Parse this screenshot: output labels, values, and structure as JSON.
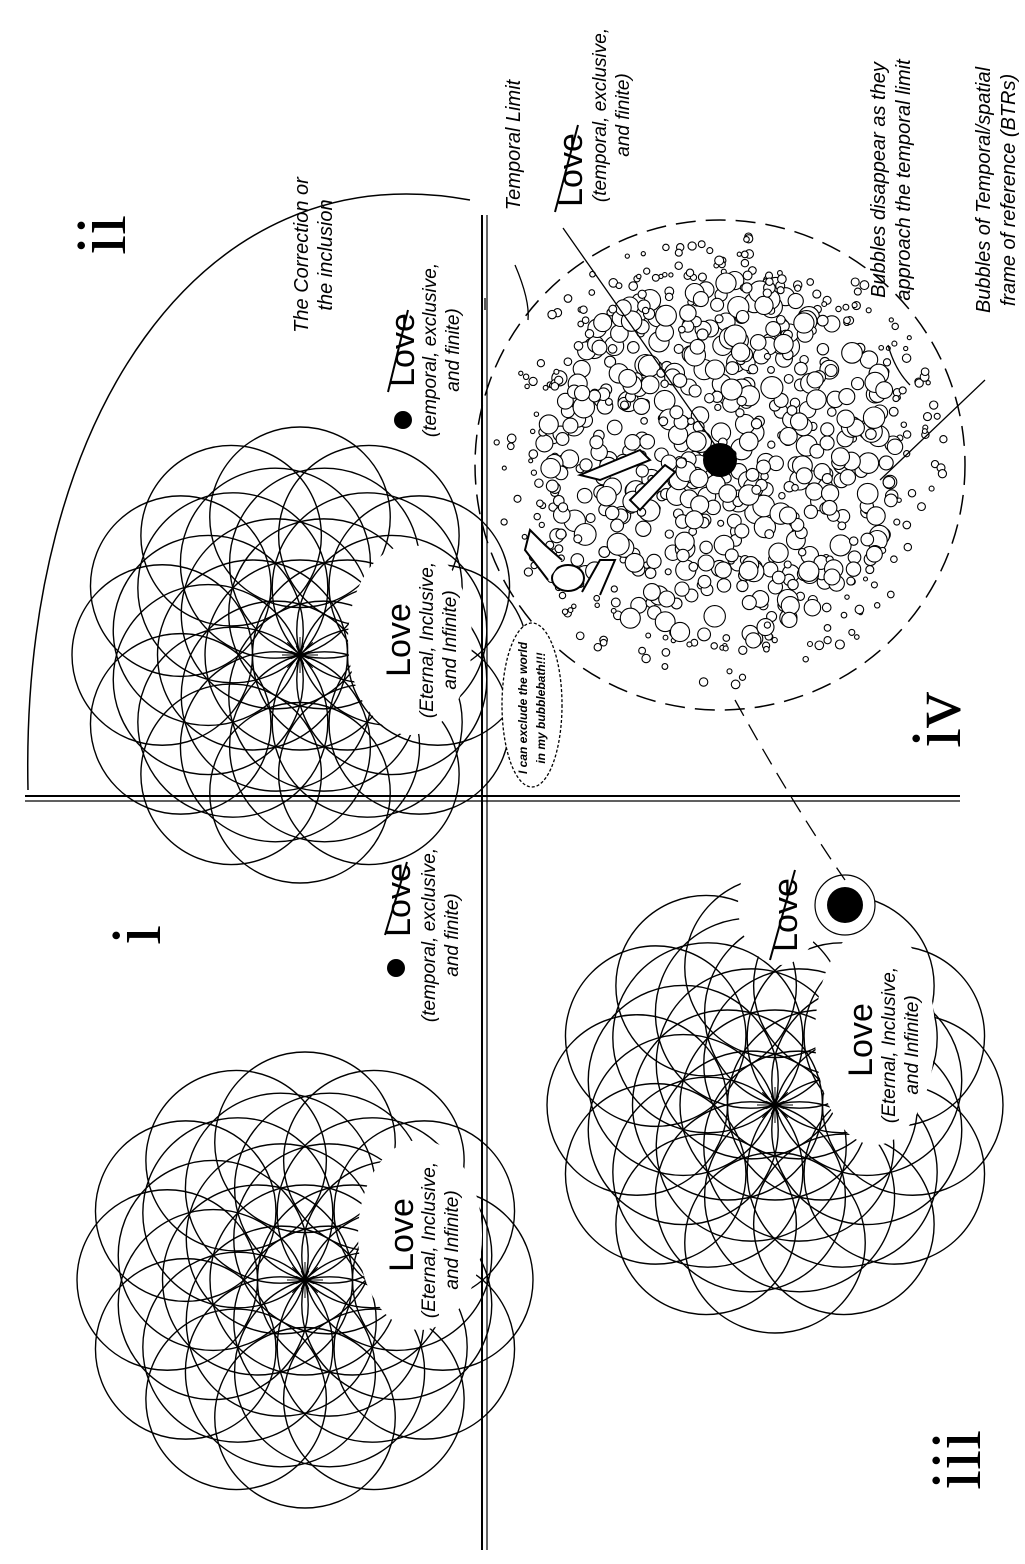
{
  "colors": {
    "ink": "#000000",
    "paper": "#ffffff"
  },
  "quadrants": {
    "i": {
      "numeral": "i",
      "love_inclusive": {
        "word": "Love",
        "line1": "(Eternal, Inclusive,",
        "line2": "and Infinite)"
      },
      "love_exclusive": {
        "word": "Love",
        "line1": "(temporal, exclusive,",
        "line2": "and finite)"
      }
    },
    "ii": {
      "numeral": "ii",
      "correction": {
        "line1": "The Correction or",
        "line2": "the inclusion"
      },
      "love_inclusive": {
        "word": "Love",
        "line1": "(Eternal, Inclusive,",
        "line2": "and Infinite)"
      },
      "love_exclusive": {
        "word": "Love",
        "line1": "(temporal, exclusive,",
        "line2": "and finite)"
      }
    },
    "iii": {
      "numeral": "iii",
      "love_inclusive": {
        "word": "Love",
        "line1": "(Eternal, Inclusive,",
        "line2": "and Infinite)"
      },
      "love_exclusive": {
        "word": "Love"
      }
    },
    "iv": {
      "numeral": "iv",
      "temporal_limit": "Temporal Limit",
      "love_exclusive": {
        "word": "Love",
        "line1": "(temporal, exclusive,",
        "line2": "and finite)"
      },
      "bubbles_disappear": {
        "line1": "Bubbles disappear as they",
        "line2": "approach the temporal limit"
      },
      "btr": {
        "line1": "Bubbles of Temporal/spatial",
        "line2": "frame of reference (BTRs)"
      },
      "speech": {
        "line1": "I can exclude the world",
        "line2": "in my bubblebath!!!"
      }
    }
  }
}
